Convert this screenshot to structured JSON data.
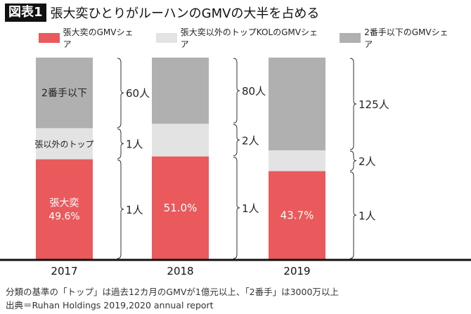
{
  "title": {
    "tag": "図表1",
    "text": "張大奕ひとりがルーハンのGMVの大半を占める"
  },
  "colors": {
    "zhang": "#ea5a5c",
    "other_kol": "#e3e3e3",
    "second": "#b0b0b0",
    "axis": "#111111"
  },
  "chart_data": {
    "type": "bar",
    "stacked": true,
    "ylim": [
      0,
      100
    ],
    "categories": [
      "2017",
      "2018",
      "2019"
    ],
    "legend_position": "top",
    "series": [
      {
        "name": "張大奕のGMVシェア",
        "values": [
          49.6,
          51.0,
          43.7
        ],
        "labels": [
          "張大奕\n49.6%",
          "51.0%",
          "43.7%"
        ],
        "counts": [
          "1人",
          "1人",
          "1人"
        ]
      },
      {
        "name": "張大奕以外のトップKOLのGMVシェア",
        "values": [
          15.4,
          16.2,
          10.3
        ],
        "labels": [
          "張以外のトップ",
          "",
          ""
        ],
        "counts": [
          "1人",
          "2人",
          "2人"
        ]
      },
      {
        "name": "2番手以下のGMVシェア",
        "values": [
          35.0,
          32.8,
          46.0
        ],
        "labels": [
          "2番手以下",
          "",
          ""
        ],
        "counts": [
          "60人",
          "80人",
          "125人"
        ]
      }
    ]
  },
  "footer": {
    "note": "分類の基準の「トップ」は過去12カ月のGMVが1億元以上、「2番手」は3000万以上",
    "source": "出典＝Ruhan Holdings 2019,2020 annual report"
  }
}
